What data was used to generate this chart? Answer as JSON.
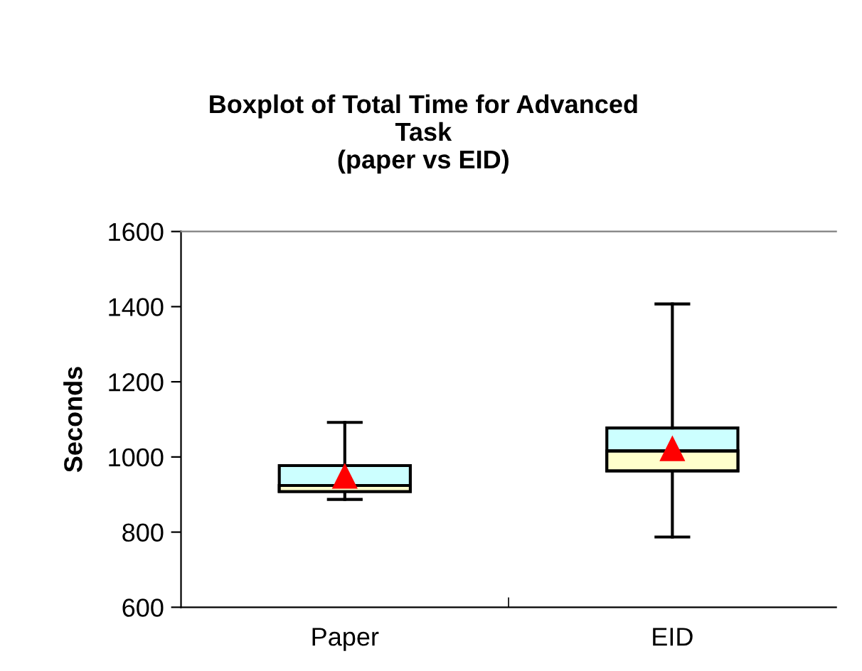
{
  "chart_data": {
    "type": "box",
    "title": "Boxplot of Total Time for Advanced\nTask\n(paper vs EID)",
    "ylabel": "Seconds",
    "categories": [
      "Paper",
      "EID"
    ],
    "series": [
      {
        "color": "#ccffff",
        "colors": [
          "#ffffcc",
          "#ffffcc"
        ],
        "boxes": [
          {
            "low": 887,
            "q1": 908,
            "median": 924,
            "q3": 977,
            "high": 1092
          },
          {
            "low": 787,
            "q1": 963,
            "median": 1016,
            "q3": 1077,
            "high": 1407
          }
        ]
      },
      {
        "type": "scatter",
        "color": "#ff0000",
        "x": [
          "Paper",
          "EID"
        ],
        "values": [
          950,
          1023
        ]
      }
    ],
    "marker": "triangle",
    "ylim": [
      600,
      1600
    ],
    "yticks": [
      600,
      800,
      1000,
      1200,
      1400,
      1600
    ],
    "grid": false,
    "legend": false
  }
}
